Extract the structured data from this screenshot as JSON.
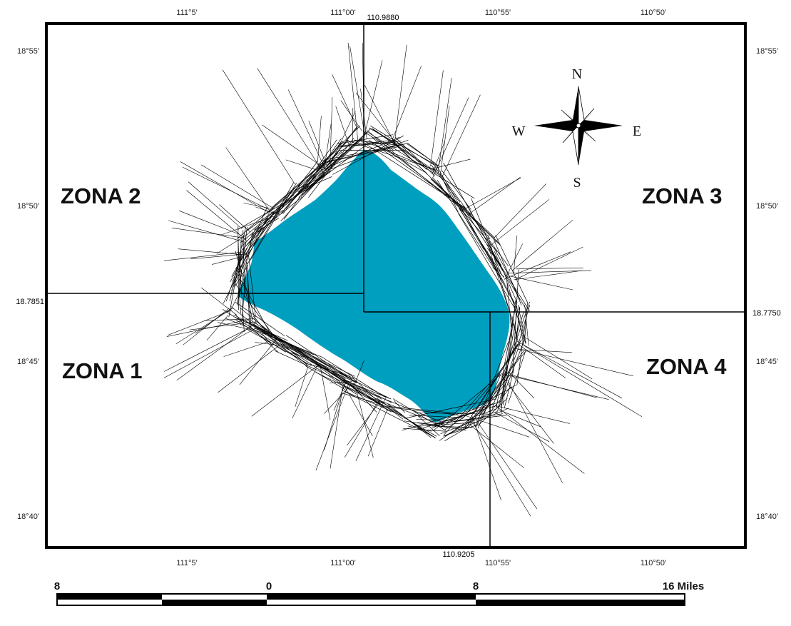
{
  "map": {
    "graticule": {
      "top_lon_labels": [
        "111°5'",
        "111°00'",
        "110°55'",
        "110°50'"
      ],
      "bottom_lon_labels": [
        "111°5'",
        "111°00'",
        "110°55'",
        "110°50'"
      ],
      "left_lat_labels": [
        "18°55'",
        "18°50'",
        "18°45'",
        "18°40'"
      ],
      "right_lat_labels": [
        "18°55'",
        "18°50'",
        "18°45'",
        "18°40'"
      ]
    },
    "zones": [
      "ZONA 1",
      "ZONA 2",
      "ZONA 3",
      "ZONA 4"
    ],
    "dividers": {
      "lon_top": "110.9880",
      "lon_bottom": "110.9205",
      "lat_left": "18.7851",
      "lat_right": "18.7750"
    },
    "compass": {
      "n": "N",
      "s": "S",
      "e": "E",
      "w": "W"
    },
    "scale_bar": {
      "labels": [
        "8",
        "0",
        "8",
        "16 Miles"
      ]
    },
    "colors": {
      "water": "#009fbf",
      "tracks": "#000000",
      "frame": "#000000"
    }
  }
}
